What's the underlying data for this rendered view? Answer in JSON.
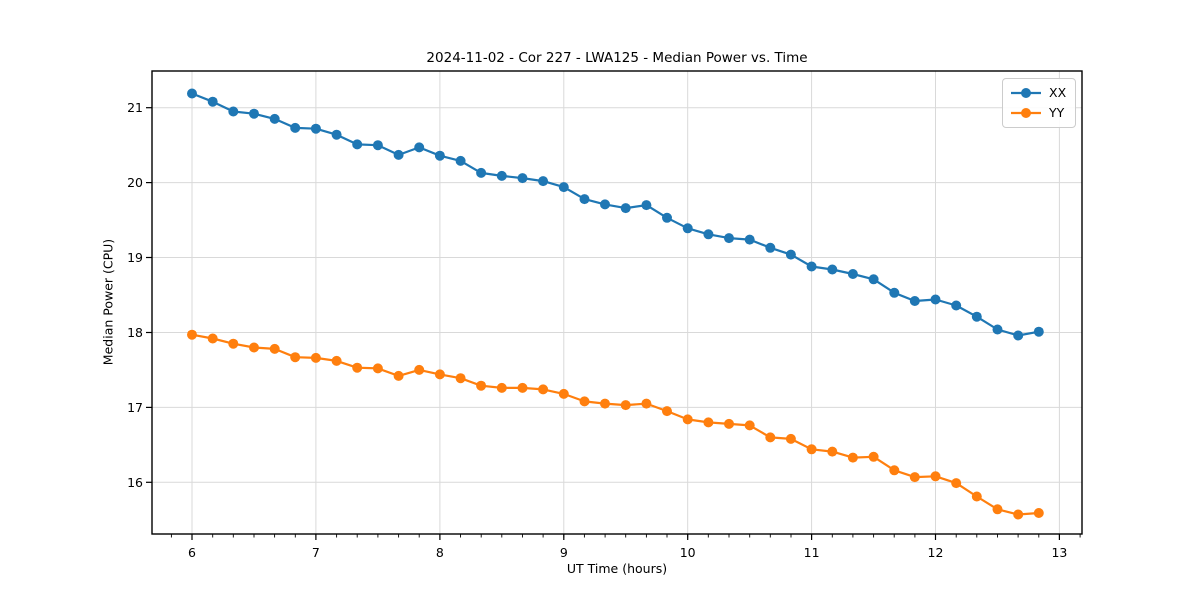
{
  "chart_data": {
    "type": "line",
    "title": "2024-11-02 - Cor 227 - LWA125 - Median Power vs. Time",
    "xlabel": "UT Time (hours)",
    "ylabel": "Median Power (CPU)",
    "x": [
      6.0,
      6.167,
      6.333,
      6.5,
      6.667,
      6.833,
      7.0,
      7.167,
      7.333,
      7.5,
      7.667,
      7.833,
      8.0,
      8.167,
      8.333,
      8.5,
      8.667,
      8.833,
      9.0,
      9.167,
      9.333,
      9.5,
      9.667,
      9.833,
      10.0,
      10.167,
      10.333,
      10.5,
      10.667,
      10.833,
      11.0,
      11.167,
      11.333,
      11.5,
      11.667,
      11.833,
      12.0,
      12.167,
      12.333,
      12.5,
      12.667,
      12.833
    ],
    "series": [
      {
        "name": "XX",
        "color": "#1f77b4",
        "values": [
          21.19,
          21.08,
          20.95,
          20.92,
          20.85,
          20.73,
          20.72,
          20.64,
          20.51,
          20.5,
          20.37,
          20.47,
          20.36,
          20.29,
          20.13,
          20.09,
          20.06,
          20.02,
          19.94,
          19.78,
          19.71,
          19.66,
          19.7,
          19.53,
          19.39,
          19.31,
          19.26,
          19.24,
          19.13,
          19.04,
          18.88,
          18.84,
          18.78,
          18.71,
          18.53,
          18.42,
          18.44,
          18.36,
          18.21,
          18.04,
          17.96,
          18.01
        ]
      },
      {
        "name": "YY",
        "color": "#ff7f0e",
        "values": [
          17.97,
          17.92,
          17.85,
          17.8,
          17.78,
          17.67,
          17.66,
          17.62,
          17.53,
          17.52,
          17.42,
          17.5,
          17.44,
          17.39,
          17.29,
          17.26,
          17.26,
          17.24,
          17.18,
          17.08,
          17.05,
          17.03,
          17.05,
          16.95,
          16.84,
          16.8,
          16.78,
          16.76,
          16.6,
          16.58,
          16.44,
          16.41,
          16.33,
          16.34,
          16.16,
          16.07,
          16.08,
          15.99,
          15.81,
          15.64,
          15.57,
          15.59
        ]
      }
    ],
    "xlim": [
      5.677,
      13.182
    ],
    "ylim": [
      15.31,
      21.49
    ],
    "xticks": [
      6,
      7,
      8,
      9,
      10,
      11,
      12,
      13
    ],
    "yticks": [
      16,
      17,
      18,
      19,
      20,
      21
    ],
    "x_minor_step": 0.1666667,
    "grid": true,
    "grid_color": "#d9d9d9",
    "spine_color": "#000000",
    "legend_position": "upper right",
    "marker": "circle",
    "marker_radius": 5,
    "line_width": 2.2
  }
}
